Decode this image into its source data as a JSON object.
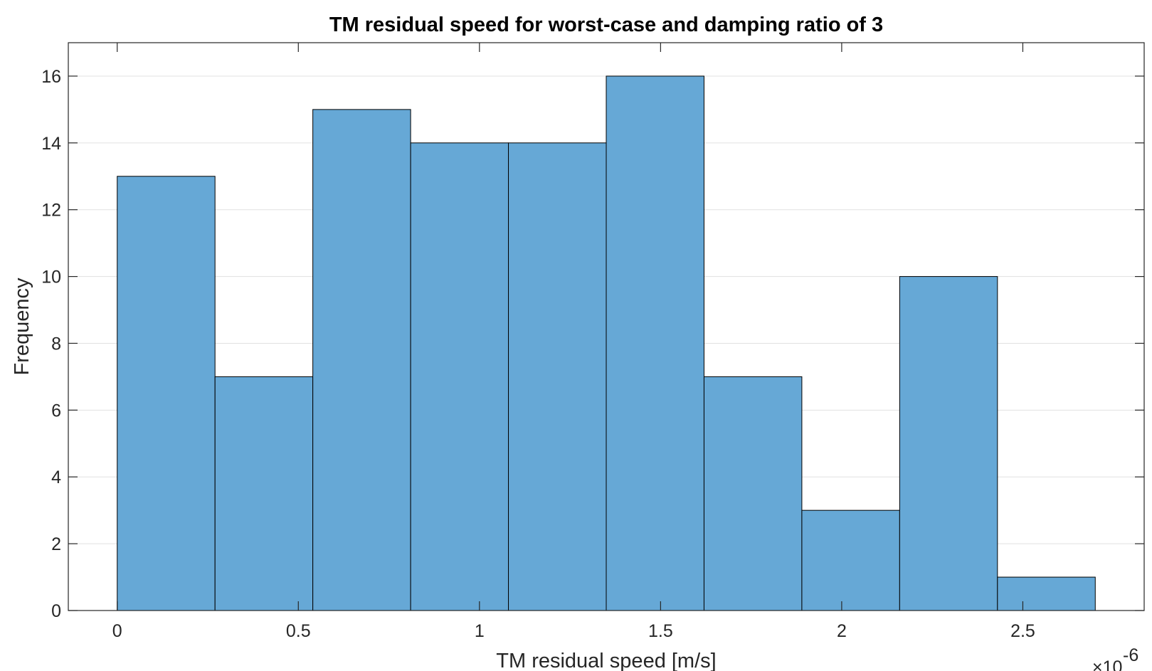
{
  "chart_data": {
    "type": "bar",
    "title": "TM residual speed for worst-case and damping ratio of 3",
    "xlabel": "TM residual speed [m/s]",
    "ylabel": "Frequency",
    "x_exponent_times": "×10",
    "x_exponent_power": "-6",
    "bin_edges": [
      0,
      0.27,
      0.54,
      0.81,
      1.08,
      1.35,
      1.62,
      1.89,
      2.16,
      2.43,
      2.7
    ],
    "values": [
      13,
      7,
      15,
      14,
      14,
      16,
      7,
      3,
      10,
      1
    ],
    "xlim": [
      -0.135,
      2.835
    ],
    "ylim": [
      0,
      17
    ],
    "xticks": [
      0,
      0.5,
      1,
      1.5,
      2,
      2.5
    ],
    "xtick_labels": [
      "0",
      "0.5",
      "1",
      "1.5",
      "2",
      "2.5"
    ],
    "yticks": [
      0,
      2,
      4,
      6,
      8,
      10,
      12,
      14,
      16
    ],
    "ytick_labels": [
      "0",
      "2",
      "4",
      "6",
      "8",
      "10",
      "12",
      "14",
      "16"
    ],
    "grid": true,
    "bar_color": "#66A8D6",
    "bar_edge_color": "#000000"
  }
}
